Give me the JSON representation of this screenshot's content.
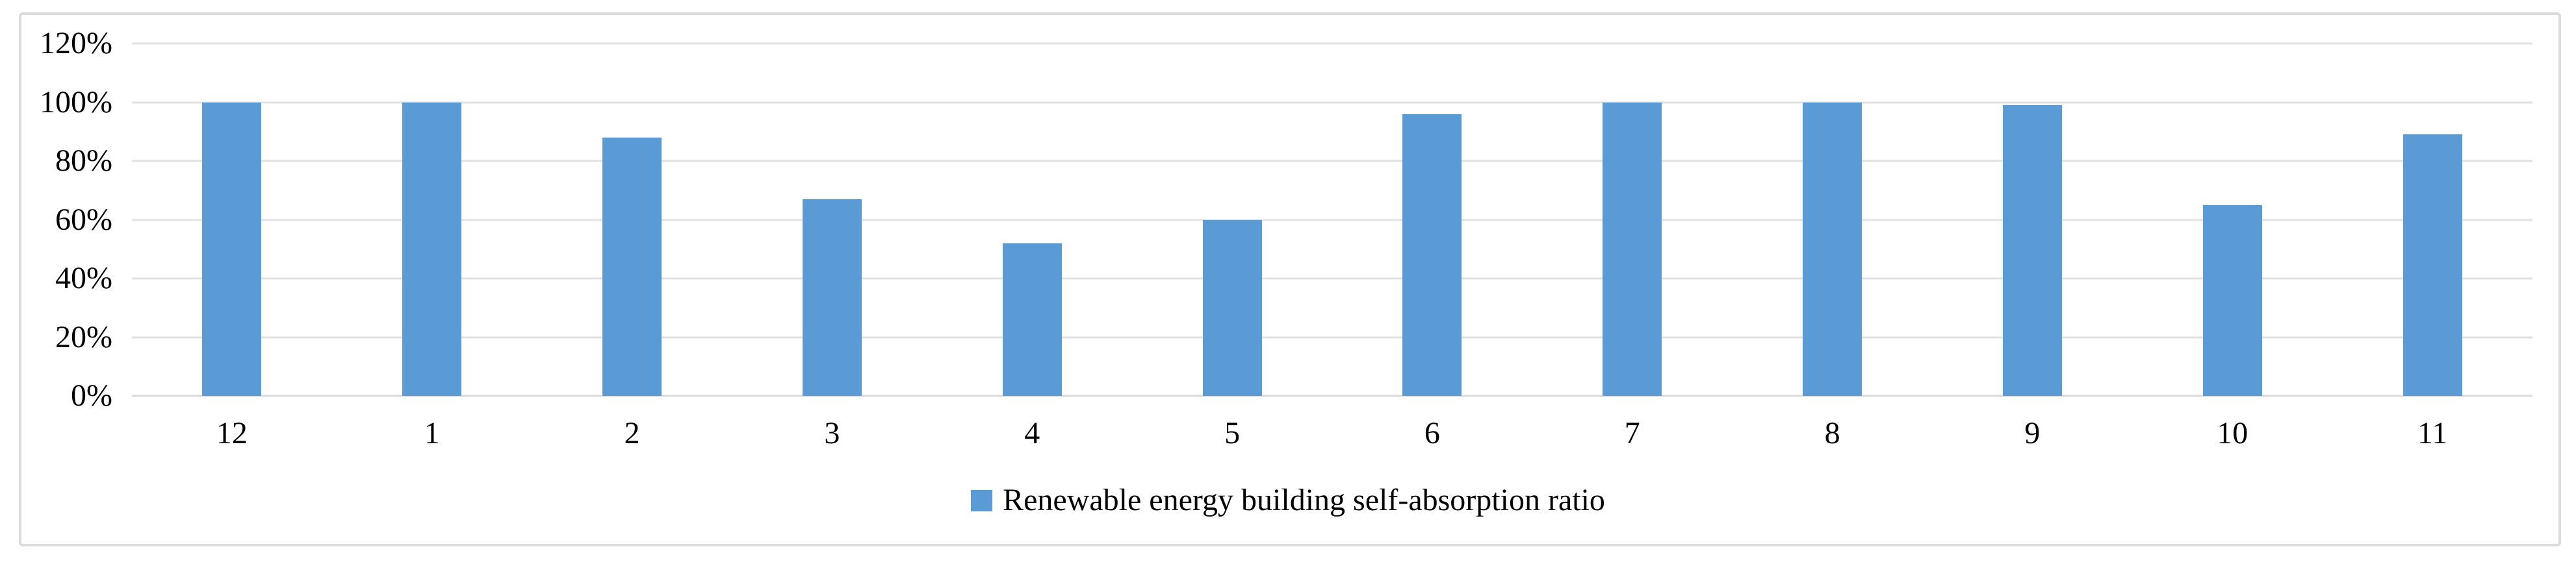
{
  "chart_data": {
    "type": "bar",
    "title": "",
    "categories": [
      "12",
      "1",
      "2",
      "3",
      "4",
      "5",
      "6",
      "7",
      "8",
      "9",
      "10",
      "11"
    ],
    "series": [
      {
        "name": "Renewable energy building self-absorption ratio",
        "values": [
          100,
          100,
          88,
          67,
          52,
          60,
          96,
          100,
          100,
          99,
          65,
          89
        ]
      }
    ],
    "value_unit": "%",
    "xlabel": "",
    "ylabel": "",
    "ylim": [
      0,
      120
    ],
    "ytick_step": 20,
    "ytick_labels": [
      "0%",
      "20%",
      "40%",
      "60%",
      "80%",
      "100%",
      "120%"
    ],
    "grid": true,
    "legend_position": "bottom-center",
    "colors": {
      "bar": "#5B9BD5",
      "gridline": "#E2E2E2",
      "axis_line": "#D9D9D9",
      "chart_border": "#DBDBDB",
      "text": "#000000",
      "background": "#FFFFFF"
    }
  }
}
